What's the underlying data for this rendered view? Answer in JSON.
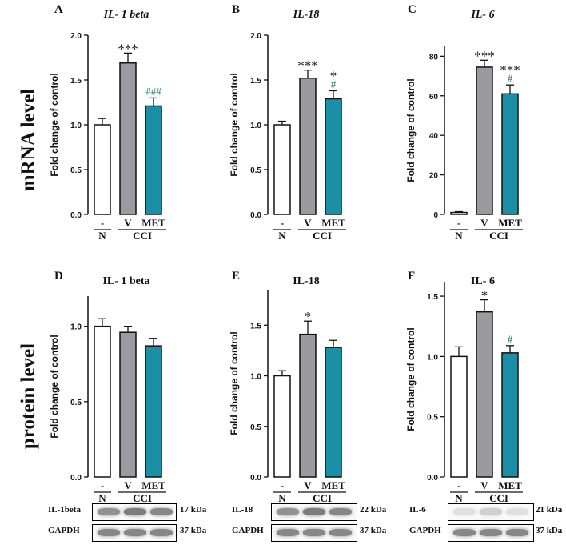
{
  "row_labels": {
    "mrna": "mRNA level",
    "protein": "protein level"
  },
  "x_group_labels": {
    "n_dash": "-",
    "n": "N",
    "v": "V",
    "met": "MET",
    "cci": "CCI"
  },
  "colors": {
    "N": "#ffffff",
    "V": "#9a9aa0",
    "MET": "#1b8fa5",
    "hash": "#1a7a5a",
    "star": "#222222"
  },
  "chart_data": [
    {
      "letter": "A",
      "title": "IL- 1 beta",
      "title_italic": true,
      "type": "bar",
      "ylabel": "Fold change of control",
      "ylim": [
        0,
        2.0
      ],
      "yticks": [
        "0.0",
        "0.5",
        "1.0",
        "1.5",
        "2.0"
      ],
      "ytick_values": [
        0,
        0.5,
        1.0,
        1.5,
        2.0
      ],
      "categories": [
        "N",
        "V",
        "MET"
      ],
      "values": [
        1.0,
        1.69,
        1.21
      ],
      "errors": [
        0.07,
        0.11,
        0.09
      ],
      "stars": [
        "",
        "***",
        ""
      ],
      "hashes": [
        "",
        "",
        "###"
      ]
    },
    {
      "letter": "B",
      "title": "IL-18",
      "title_italic": true,
      "type": "bar",
      "ylabel": "Fold change of control",
      "ylim": [
        0,
        2.0
      ],
      "yticks": [
        "0.0",
        "0.5",
        "1.0",
        "1.5",
        "2.0"
      ],
      "ytick_values": [
        0,
        0.5,
        1.0,
        1.5,
        2.0
      ],
      "categories": [
        "N",
        "V",
        "MET"
      ],
      "values": [
        1.0,
        1.52,
        1.29
      ],
      "errors": [
        0.04,
        0.09,
        0.09
      ],
      "stars": [
        "",
        "***",
        "*"
      ],
      "hashes": [
        "",
        "",
        "#"
      ]
    },
    {
      "letter": "C",
      "title": "IL- 6",
      "title_italic": true,
      "type": "bar",
      "ylabel": "Fold change of control",
      "ylim": [
        0,
        85
      ],
      "yticks": [
        "0",
        "20",
        "40",
        "60",
        "80"
      ],
      "ytick_values": [
        0,
        20,
        40,
        60,
        80
      ],
      "categories": [
        "N",
        "V",
        "MET"
      ],
      "values": [
        1.0,
        74.5,
        61
      ],
      "errors": [
        0.4,
        3.5,
        4.5
      ],
      "stars": [
        "",
        "***",
        "***"
      ],
      "hashes": [
        "",
        "",
        "#"
      ]
    },
    {
      "letter": "D",
      "title": "IL- 1 beta",
      "title_italic": false,
      "type": "bar",
      "ylabel": "Fold change of control",
      "ylim": [
        0,
        1.2
      ],
      "yticks": [
        "0.0",
        "0.5",
        "1.0"
      ],
      "ytick_values": [
        0,
        0.5,
        1.0
      ],
      "categories": [
        "N",
        "V",
        "MET"
      ],
      "values": [
        1.0,
        0.96,
        0.87
      ],
      "errors": [
        0.05,
        0.04,
        0.05
      ],
      "stars": [
        "",
        "",
        ""
      ],
      "hashes": [
        "",
        "",
        ""
      ]
    },
    {
      "letter": "E",
      "title": "IL-18",
      "title_italic": false,
      "type": "bar",
      "ylabel": "Fold change of control",
      "ylim": [
        0,
        1.85
      ],
      "yticks": [
        "0.0",
        "0.5",
        "1.0",
        "1.5"
      ],
      "ytick_values": [
        0,
        0.5,
        1.0,
        1.5
      ],
      "categories": [
        "N",
        "V",
        "MET"
      ],
      "values": [
        1.0,
        1.41,
        1.28
      ],
      "errors": [
        0.05,
        0.13,
        0.07
      ],
      "stars": [
        "",
        "*",
        ""
      ],
      "hashes": [
        "",
        "",
        ""
      ]
    },
    {
      "letter": "F",
      "title": "IL- 6",
      "title_italic": false,
      "type": "bar",
      "ylabel": "Fold change of control",
      "ylim": [
        0,
        1.62
      ],
      "yticks": [
        "0.0",
        "0.5",
        "1.0",
        "1.5"
      ],
      "ytick_values": [
        0,
        0.5,
        1.0,
        1.5
      ],
      "categories": [
        "N",
        "V",
        "MET"
      ],
      "values": [
        1.0,
        1.37,
        1.03
      ],
      "errors": [
        0.08,
        0.1,
        0.06
      ],
      "stars": [
        "",
        "*",
        ""
      ],
      "hashes": [
        "",
        "",
        "#"
      ]
    }
  ],
  "blots": [
    {
      "rows": [
        {
          "label": "IL-1beta",
          "kda": "17 kDa"
        },
        {
          "label": "GAPDH",
          "kda": "37 kDa"
        }
      ]
    },
    {
      "rows": [
        {
          "label": "IL-18",
          "kda": "22 kDa"
        },
        {
          "label": "GAPDH",
          "kda": "37 kDa"
        }
      ]
    },
    {
      "rows": [
        {
          "label": "IL-6",
          "kda": "21 kDa"
        },
        {
          "label": "GAPDH",
          "kda": "37 kDa"
        }
      ]
    }
  ]
}
